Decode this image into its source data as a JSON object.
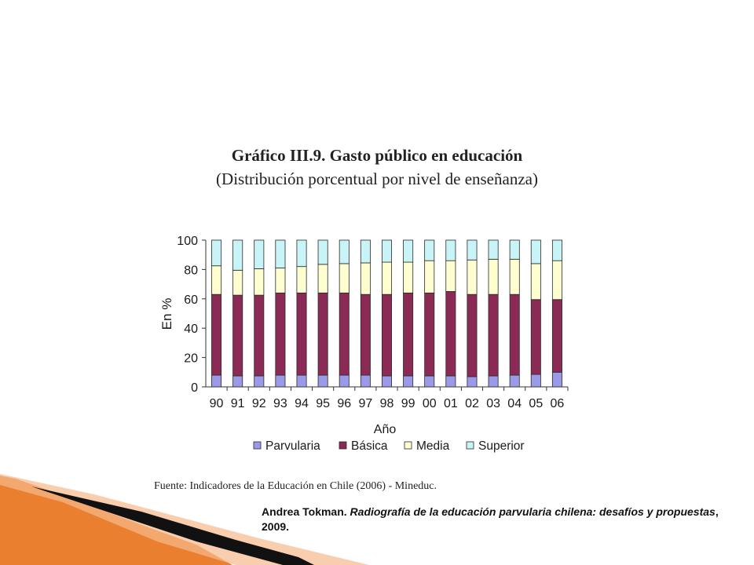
{
  "slide": {
    "source": "Fuente: Indicadores de la Educación en Chile (2006)  - Mineduc.",
    "citation": {
      "author": "Andrea Tokman.",
      "work": "Radiografía de la educación parvularia chilena: desafíos y propuestas",
      "year": ", 2009."
    }
  },
  "colors": {
    "Parvularia": "#9a9ae8",
    "Básica": "#8b2a55",
    "Media": "#fefed0",
    "Superior": "#c8f4f8",
    "outline": "#2a2a2a",
    "deco_orange": "#e8741e",
    "deco_dark": "#111111"
  },
  "chart_data": {
    "type": "bar",
    "stacked": true,
    "title": "Gráfico III.9. Gasto público en educación",
    "subtitle": "(Distribución porcentual por nivel de enseñanza)",
    "xlabel": "Año",
    "ylabel": "En %",
    "ylim": [
      0,
      100
    ],
    "yticks": [
      0,
      20,
      40,
      60,
      80,
      100
    ],
    "grid": false,
    "legend_position": "bottom",
    "categories": [
      "90",
      "91",
      "92",
      "93",
      "94",
      "95",
      "96",
      "97",
      "98",
      "99",
      "00",
      "01",
      "02",
      "03",
      "04",
      "05",
      "06"
    ],
    "series": [
      {
        "name": "Parvularia",
        "values": [
          8,
          7.5,
          7.5,
          8,
          8,
          8,
          8,
          8,
          7.5,
          7.5,
          7.5,
          7.5,
          7,
          7.5,
          8,
          8.5,
          10
        ]
      },
      {
        "name": "Básica",
        "values": [
          55,
          55,
          55,
          56,
          56,
          56,
          56,
          55,
          55.5,
          56.5,
          56.5,
          57.5,
          56,
          55.5,
          55,
          51,
          49.5
        ]
      },
      {
        "name": "Media",
        "values": [
          19.5,
          17,
          18,
          17,
          18,
          19.5,
          20,
          21.5,
          22,
          21,
          22,
          21,
          23.5,
          24,
          24,
          24.5,
          26.5
        ]
      },
      {
        "name": "Superior",
        "values": [
          17.5,
          20.5,
          19.5,
          19,
          18,
          16.5,
          16,
          15.5,
          15,
          15,
          14,
          14,
          13.5,
          13,
          13,
          16,
          14
        ]
      }
    ]
  }
}
